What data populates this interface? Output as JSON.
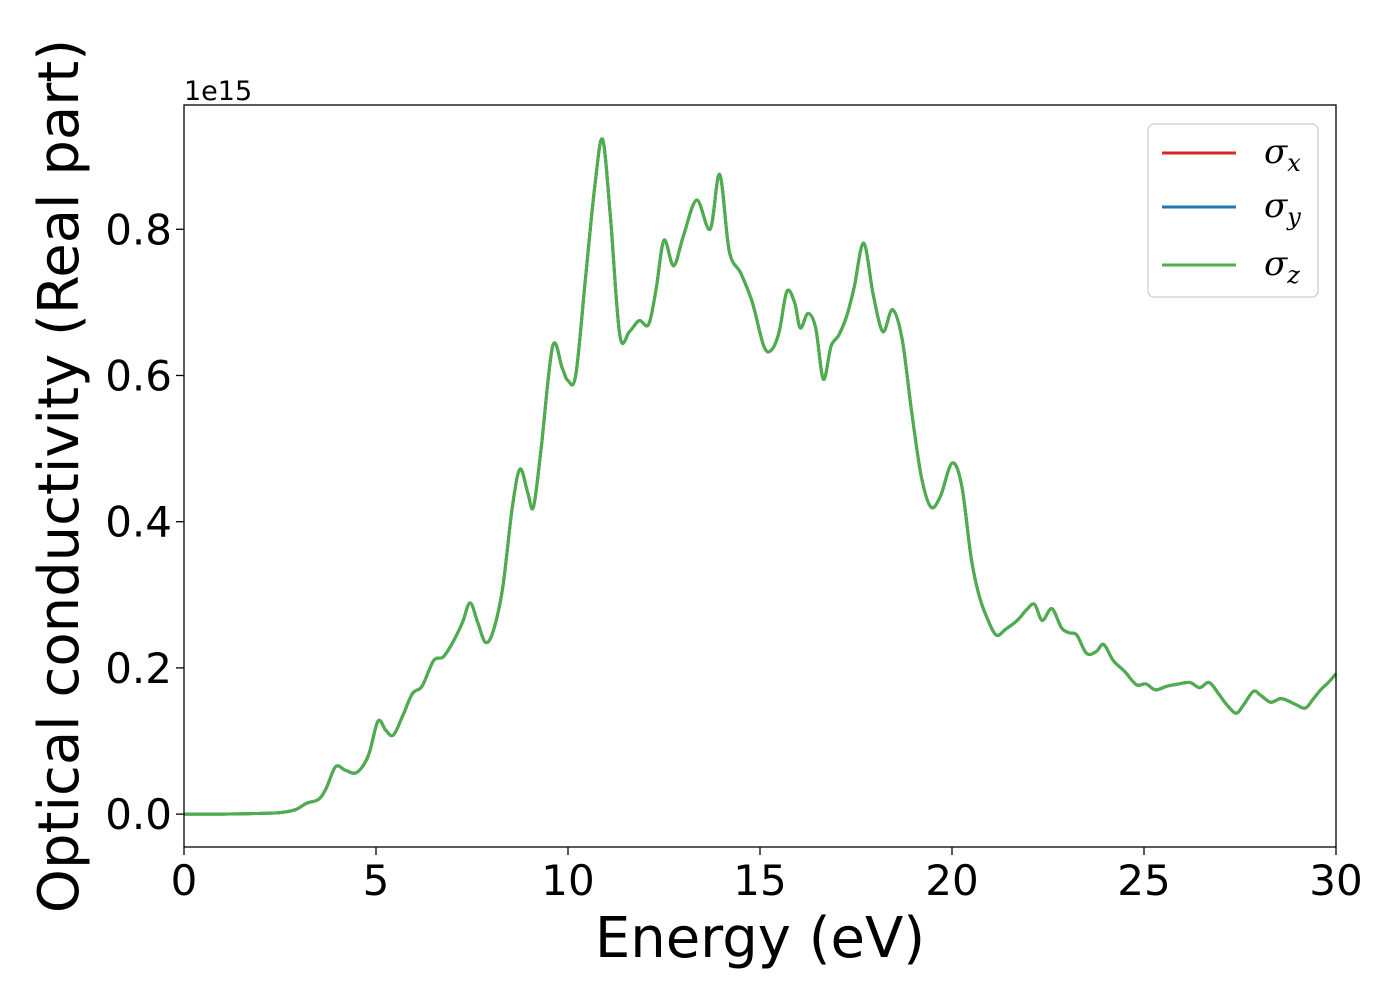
{
  "chart_data": {
    "type": "line",
    "xlabel": "Energy (eV)",
    "ylabel": "Optical conductivity (Real part)",
    "y_offset_text": "1e15",
    "xlim": [
      0,
      30
    ],
    "ylim": [
      -0.045,
      0.97
    ],
    "xticks": [
      0,
      5,
      10,
      15,
      20,
      25,
      30
    ],
    "xtick_labels": [
      "0",
      "5",
      "10",
      "15",
      "20",
      "25",
      "30"
    ],
    "yticks": [
      0.0,
      0.2,
      0.4,
      0.6,
      0.8
    ],
    "ytick_labels": [
      "0.0",
      "0.2",
      "0.4",
      "0.6",
      "0.8"
    ],
    "grid": false,
    "legend_position": "top-right",
    "series": [
      {
        "name": "σx",
        "symbol": "σ",
        "subscript": "x",
        "color": "#d62728",
        "x": [
          0,
          1,
          2,
          2.5,
          2.9,
          3.2,
          3.5,
          3.7,
          3.95,
          4.2,
          4.5,
          4.8,
          5.05,
          5.25,
          5.45,
          5.7,
          5.95,
          6.2,
          6.5,
          6.75,
          7.0,
          7.25,
          7.45,
          7.65,
          7.85,
          8.05,
          8.3,
          8.55,
          8.75,
          8.95,
          9.1,
          9.3,
          9.6,
          9.85,
          10.0,
          10.2,
          10.45,
          10.7,
          10.9,
          11.1,
          11.35,
          11.6,
          11.85,
          12.1,
          12.3,
          12.5,
          12.75,
          13.0,
          13.35,
          13.7,
          13.95,
          14.2,
          14.5,
          14.8,
          15.1,
          15.3,
          15.5,
          15.7,
          15.9,
          16.05,
          16.25,
          16.45,
          16.65,
          16.85,
          17.05,
          17.25,
          17.45,
          17.7,
          17.95,
          18.2,
          18.45,
          18.7,
          18.95,
          19.2,
          19.45,
          19.7,
          20.0,
          20.25,
          20.5,
          20.7,
          20.9,
          21.15,
          21.4,
          21.7,
          21.95,
          22.15,
          22.35,
          22.6,
          22.85,
          23.05,
          23.25,
          23.5,
          23.75,
          23.95,
          24.2,
          24.5,
          24.8,
          25.05,
          25.3,
          25.6,
          25.9,
          26.2,
          26.45,
          26.7,
          26.95,
          27.15,
          27.4,
          27.6,
          27.85,
          28.05,
          28.3,
          28.55,
          28.75,
          28.95,
          29.2,
          29.4,
          29.6,
          29.8,
          30
        ],
        "values": [
          0.0,
          0.0,
          0.001,
          0.002,
          0.006,
          0.015,
          0.02,
          0.035,
          0.065,
          0.06,
          0.057,
          0.08,
          0.127,
          0.115,
          0.108,
          0.135,
          0.165,
          0.175,
          0.21,
          0.215,
          0.235,
          0.262,
          0.289,
          0.262,
          0.235,
          0.25,
          0.31,
          0.42,
          0.472,
          0.44,
          0.42,
          0.5,
          0.64,
          0.61,
          0.593,
          0.6,
          0.73,
          0.86,
          0.923,
          0.82,
          0.655,
          0.66,
          0.675,
          0.67,
          0.72,
          0.785,
          0.75,
          0.79,
          0.84,
          0.8,
          0.875,
          0.77,
          0.74,
          0.7,
          0.64,
          0.635,
          0.66,
          0.715,
          0.7,
          0.665,
          0.685,
          0.665,
          0.595,
          0.64,
          0.655,
          0.68,
          0.72,
          0.781,
          0.71,
          0.66,
          0.69,
          0.65,
          0.55,
          0.462,
          0.42,
          0.435,
          0.48,
          0.45,
          0.35,
          0.3,
          0.27,
          0.245,
          0.253,
          0.265,
          0.28,
          0.287,
          0.265,
          0.281,
          0.255,
          0.248,
          0.245,
          0.22,
          0.222,
          0.232,
          0.21,
          0.195,
          0.177,
          0.178,
          0.17,
          0.175,
          0.178,
          0.18,
          0.173,
          0.18,
          0.164,
          0.15,
          0.138,
          0.15,
          0.168,
          0.162,
          0.153,
          0.158,
          0.155,
          0.15,
          0.145,
          0.157,
          0.17,
          0.18,
          0.192
        ]
      },
      {
        "name": "σy",
        "symbol": "σ",
        "subscript": "y",
        "color": "#1f77b4",
        "x": [
          0,
          1,
          2,
          2.5,
          2.9,
          3.2,
          3.5,
          3.7,
          3.95,
          4.2,
          4.5,
          4.8,
          5.05,
          5.25,
          5.45,
          5.7,
          5.95,
          6.2,
          6.5,
          6.75,
          7.0,
          7.25,
          7.45,
          7.65,
          7.85,
          8.05,
          8.3,
          8.55,
          8.75,
          8.95,
          9.1,
          9.3,
          9.6,
          9.85,
          10.0,
          10.2,
          10.45,
          10.7,
          10.9,
          11.1,
          11.35,
          11.6,
          11.85,
          12.1,
          12.3,
          12.5,
          12.75,
          13.0,
          13.35,
          13.7,
          13.95,
          14.2,
          14.5,
          14.8,
          15.1,
          15.3,
          15.5,
          15.7,
          15.9,
          16.05,
          16.25,
          16.45,
          16.65,
          16.85,
          17.05,
          17.25,
          17.45,
          17.7,
          17.95,
          18.2,
          18.45,
          18.7,
          18.95,
          19.2,
          19.45,
          19.7,
          20.0,
          20.25,
          20.5,
          20.7,
          20.9,
          21.15,
          21.4,
          21.7,
          21.95,
          22.15,
          22.35,
          22.6,
          22.85,
          23.05,
          23.25,
          23.5,
          23.75,
          23.95,
          24.2,
          24.5,
          24.8,
          25.05,
          25.3,
          25.6,
          25.9,
          26.2,
          26.45,
          26.7,
          26.95,
          27.15,
          27.4,
          27.6,
          27.85,
          28.05,
          28.3,
          28.55,
          28.75,
          28.95,
          29.2,
          29.4,
          29.6,
          29.8,
          30
        ],
        "values": [
          0.0,
          0.0,
          0.001,
          0.002,
          0.006,
          0.015,
          0.02,
          0.035,
          0.065,
          0.06,
          0.057,
          0.08,
          0.127,
          0.115,
          0.108,
          0.135,
          0.165,
          0.175,
          0.21,
          0.215,
          0.235,
          0.262,
          0.289,
          0.262,
          0.235,
          0.25,
          0.31,
          0.42,
          0.472,
          0.44,
          0.42,
          0.5,
          0.64,
          0.61,
          0.593,
          0.6,
          0.73,
          0.86,
          0.923,
          0.82,
          0.655,
          0.66,
          0.675,
          0.67,
          0.72,
          0.785,
          0.75,
          0.79,
          0.84,
          0.8,
          0.875,
          0.77,
          0.74,
          0.7,
          0.64,
          0.635,
          0.66,
          0.715,
          0.7,
          0.665,
          0.685,
          0.665,
          0.595,
          0.64,
          0.655,
          0.68,
          0.72,
          0.781,
          0.71,
          0.66,
          0.69,
          0.65,
          0.55,
          0.462,
          0.42,
          0.435,
          0.48,
          0.45,
          0.35,
          0.3,
          0.27,
          0.245,
          0.253,
          0.265,
          0.28,
          0.287,
          0.265,
          0.281,
          0.255,
          0.248,
          0.245,
          0.22,
          0.222,
          0.232,
          0.21,
          0.195,
          0.177,
          0.178,
          0.17,
          0.175,
          0.178,
          0.18,
          0.173,
          0.18,
          0.164,
          0.15,
          0.138,
          0.15,
          0.168,
          0.162,
          0.153,
          0.158,
          0.155,
          0.15,
          0.145,
          0.157,
          0.17,
          0.18,
          0.192
        ]
      },
      {
        "name": "σz",
        "symbol": "σ",
        "subscript": "z",
        "color": "#4daf4a",
        "x": [
          0,
          1,
          2,
          2.5,
          2.9,
          3.2,
          3.5,
          3.7,
          3.95,
          4.2,
          4.5,
          4.8,
          5.05,
          5.25,
          5.45,
          5.7,
          5.95,
          6.2,
          6.5,
          6.75,
          7.0,
          7.25,
          7.45,
          7.65,
          7.85,
          8.05,
          8.3,
          8.55,
          8.75,
          8.95,
          9.1,
          9.3,
          9.6,
          9.85,
          10.0,
          10.2,
          10.45,
          10.7,
          10.9,
          11.1,
          11.35,
          11.6,
          11.85,
          12.1,
          12.3,
          12.5,
          12.75,
          13.0,
          13.35,
          13.7,
          13.95,
          14.2,
          14.5,
          14.8,
          15.1,
          15.3,
          15.5,
          15.7,
          15.9,
          16.05,
          16.25,
          16.45,
          16.65,
          16.85,
          17.05,
          17.25,
          17.45,
          17.7,
          17.95,
          18.2,
          18.45,
          18.7,
          18.95,
          19.2,
          19.45,
          19.7,
          20.0,
          20.25,
          20.5,
          20.7,
          20.9,
          21.15,
          21.4,
          21.7,
          21.95,
          22.15,
          22.35,
          22.6,
          22.85,
          23.05,
          23.25,
          23.5,
          23.75,
          23.95,
          24.2,
          24.5,
          24.8,
          25.05,
          25.3,
          25.6,
          25.9,
          26.2,
          26.45,
          26.7,
          26.95,
          27.15,
          27.4,
          27.6,
          27.85,
          28.05,
          28.3,
          28.55,
          28.75,
          28.95,
          29.2,
          29.4,
          29.6,
          29.8,
          30
        ],
        "values": [
          0.0,
          0.0,
          0.001,
          0.002,
          0.006,
          0.015,
          0.02,
          0.035,
          0.065,
          0.06,
          0.057,
          0.08,
          0.127,
          0.115,
          0.108,
          0.135,
          0.165,
          0.175,
          0.21,
          0.215,
          0.235,
          0.262,
          0.289,
          0.262,
          0.235,
          0.25,
          0.31,
          0.42,
          0.472,
          0.44,
          0.42,
          0.5,
          0.64,
          0.61,
          0.593,
          0.6,
          0.73,
          0.86,
          0.923,
          0.82,
          0.655,
          0.66,
          0.675,
          0.67,
          0.72,
          0.785,
          0.75,
          0.79,
          0.84,
          0.8,
          0.875,
          0.77,
          0.74,
          0.7,
          0.64,
          0.635,
          0.66,
          0.715,
          0.7,
          0.665,
          0.685,
          0.665,
          0.595,
          0.64,
          0.655,
          0.68,
          0.72,
          0.781,
          0.71,
          0.66,
          0.69,
          0.65,
          0.55,
          0.462,
          0.42,
          0.435,
          0.48,
          0.45,
          0.35,
          0.3,
          0.27,
          0.245,
          0.253,
          0.265,
          0.28,
          0.287,
          0.265,
          0.281,
          0.255,
          0.248,
          0.245,
          0.22,
          0.222,
          0.232,
          0.21,
          0.195,
          0.177,
          0.178,
          0.17,
          0.175,
          0.178,
          0.18,
          0.173,
          0.18,
          0.164,
          0.15,
          0.138,
          0.15,
          0.168,
          0.162,
          0.153,
          0.158,
          0.155,
          0.15,
          0.145,
          0.157,
          0.17,
          0.18,
          0.192
        ]
      }
    ]
  }
}
